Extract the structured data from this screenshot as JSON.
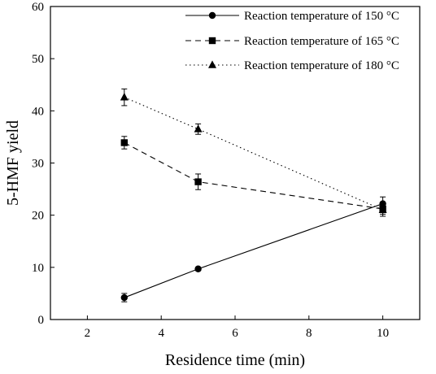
{
  "chart_data": {
    "type": "line",
    "xlabel": "Residence time (min)",
    "ylabel": "5-HMF yield",
    "xlim": [
      1,
      11
    ],
    "ylim": [
      0,
      60
    ],
    "xticks": [
      2,
      4,
      6,
      8,
      10
    ],
    "yticks": [
      0,
      10,
      20,
      30,
      40,
      50,
      60
    ],
    "grid": false,
    "legend_position": "top-right",
    "x": [
      3,
      5,
      10
    ],
    "series": [
      {
        "name": "Reaction temperature of 150 °C",
        "marker": "circle",
        "line_style": "solid",
        "values": [
          4.2,
          9.7,
          22.2
        ],
        "errors": [
          0.8,
          0.3,
          1.3
        ]
      },
      {
        "name": "Reaction temperature of 165 °C",
        "marker": "square",
        "line_style": "dashed",
        "values": [
          33.9,
          26.4,
          21.2
        ],
        "errors": [
          1.2,
          1.5,
          1.0
        ]
      },
      {
        "name": "Reaction temperature of 180 °C",
        "marker": "triangle",
        "line_style": "dotted",
        "values": [
          42.6,
          36.5,
          21.0
        ],
        "errors": [
          1.6,
          1.0,
          1.2
        ]
      }
    ]
  }
}
